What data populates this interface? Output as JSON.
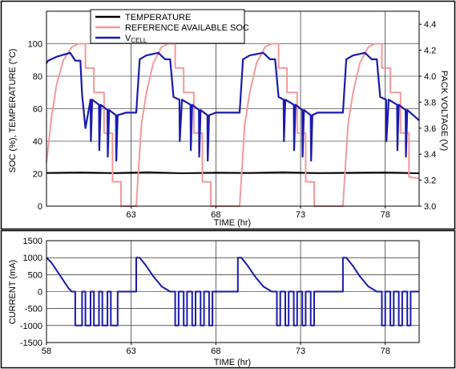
{
  "chart_data": [
    {
      "type": "line",
      "xlabel": "TIME (hr)",
      "ylabel": "SOC (%), TEMPERATURE (°C)",
      "y2label": "PACK VOLTAGE (V)",
      "xlim": [
        58,
        80
      ],
      "ylim": [
        0,
        120
      ],
      "y2lim": [
        3.0,
        4.5
      ],
      "xticks": [
        63,
        68,
        73,
        78
      ],
      "yticks": [
        0,
        20,
        40,
        60,
        80,
        100
      ],
      "y2ticks": [
        3.0,
        3.2,
        3.4,
        3.6,
        3.8,
        4.0,
        4.2,
        4.4
      ],
      "grid": true,
      "legend_position": "top-center",
      "series": [
        {
          "name": "TEMPERATURE",
          "axis": "left",
          "color": "#000000",
          "x": [
            58,
            60,
            62,
            64,
            66,
            68,
            70,
            72,
            74,
            76,
            78,
            80
          ],
          "y": [
            20.5,
            20.8,
            20.4,
            20.9,
            20.3,
            20.7,
            20.5,
            20.9,
            20.4,
            20.6,
            20.8,
            20.3
          ]
        },
        {
          "name": "REFERENCE AVAILABLE SOC",
          "axis": "left",
          "color": "#f29a9a",
          "x": [
            58,
            58.3,
            58.6,
            59,
            59.5,
            59.9,
            60.3,
            60.3,
            60.8,
            60.8,
            61.4,
            61.4,
            61.9,
            61.9,
            62.4,
            62.4,
            63.3,
            63.6,
            63.9,
            64.3,
            64.8,
            65.2,
            65.6,
            65.6,
            66.1,
            66.1,
            66.7,
            66.7,
            67.2,
            67.2,
            67.7,
            67.7,
            69.4,
            69.7,
            70.0,
            70.4,
            70.9,
            71.3,
            71.7,
            71.7,
            72.2,
            72.2,
            72.8,
            72.8,
            73.3,
            73.3,
            73.8,
            73.8,
            75.5,
            75.8,
            76.1,
            76.5,
            77.0,
            77.4,
            77.8,
            77.8,
            78.3,
            78.3,
            78.9,
            78.9,
            79.4,
            79.4,
            80
          ],
          "y": [
            27,
            55,
            75,
            90,
            98,
            100,
            100,
            85,
            85,
            70,
            70,
            45,
            45,
            15,
            15,
            0,
            0,
            50,
            70,
            88,
            98,
            100,
            100,
            85,
            85,
            70,
            70,
            45,
            45,
            15,
            15,
            0,
            0,
            50,
            70,
            88,
            98,
            100,
            100,
            85,
            85,
            70,
            70,
            45,
            45,
            15,
            15,
            0,
            0,
            50,
            70,
            88,
            98,
            100,
            100,
            85,
            85,
            70,
            70,
            45,
            45,
            18,
            17
          ]
        },
        {
          "name": "VCELL",
          "name_main": "V",
          "name_sub": "CELL",
          "axis": "right",
          "color": "#1a1ab0",
          "x": [
            58,
            58.1,
            58.6,
            59.4,
            59.7,
            60.0,
            60.1,
            60.3,
            60.6,
            60.62,
            60.7,
            61.1,
            61.12,
            61.2,
            61.6,
            61.62,
            61.7,
            62.1,
            62.12,
            62.2,
            62.7,
            63.3,
            63.5,
            63.9,
            64.6,
            65.0,
            65.3,
            65.5,
            65.85,
            65.87,
            66.0,
            66.5,
            66.52,
            66.6,
            67.0,
            67.02,
            67.1,
            67.5,
            67.52,
            67.6,
            68.0,
            69.4,
            69.6,
            70.0,
            70.8,
            71.2,
            71.5,
            71.7,
            72.0,
            72.02,
            72.1,
            72.6,
            72.62,
            72.7,
            73.1,
            73.12,
            73.2,
            73.6,
            73.62,
            73.7,
            74.0,
            75.5,
            75.7,
            76.1,
            76.8,
            77.2,
            77.5,
            77.7,
            78.05,
            78.07,
            78.2,
            78.7,
            78.72,
            78.8,
            79.2,
            79.22,
            79.3,
            80
          ],
          "y": [
            4.1,
            4.12,
            4.15,
            4.18,
            4.12,
            4.12,
            3.86,
            3.6,
            3.82,
            3.5,
            3.82,
            3.78,
            3.43,
            3.78,
            3.74,
            3.38,
            3.74,
            3.7,
            3.35,
            3.7,
            3.72,
            3.72,
            4.13,
            4.16,
            4.18,
            4.13,
            4.13,
            3.84,
            3.82,
            3.5,
            3.82,
            3.78,
            3.43,
            3.78,
            3.74,
            3.38,
            3.74,
            3.7,
            3.35,
            3.7,
            3.72,
            3.72,
            4.13,
            4.16,
            4.18,
            4.13,
            4.13,
            3.84,
            3.82,
            3.5,
            3.82,
            3.78,
            3.43,
            3.78,
            3.74,
            3.38,
            3.74,
            3.7,
            3.35,
            3.7,
            3.72,
            3.72,
            4.13,
            4.16,
            4.18,
            4.13,
            4.13,
            3.84,
            3.82,
            3.5,
            3.82,
            3.78,
            3.43,
            3.78,
            3.74,
            3.38,
            3.74,
            3.66
          ]
        }
      ]
    },
    {
      "type": "line",
      "xlabel": "TIME (hr)",
      "ylabel": "CURRENT (mA)",
      "xlim": [
        58,
        80
      ],
      "ylim": [
        -1500,
        1500
      ],
      "xticks": [
        58,
        63,
        68,
        73,
        78
      ],
      "yticks": [
        -1500,
        -1000,
        -500,
        0,
        500,
        1000,
        1500
      ],
      "grid": true,
      "series": [
        {
          "name": "",
          "color": "#1a1ab0",
          "x": [
            58,
            58.3,
            58.7,
            59.1,
            59.3,
            59.5,
            59.5,
            59.7,
            59.7,
            60.1,
            60.1,
            60.3,
            60.3,
            60.6,
            60.6,
            60.8,
            60.8,
            61.1,
            61.1,
            61.3,
            61.3,
            61.6,
            61.6,
            61.8,
            61.8,
            62.2,
            62.2,
            62.4,
            62.4,
            63.3,
            63.3,
            63.5,
            63.9,
            64.3,
            64.8,
            65.3,
            65.3,
            65.6,
            65.6,
            65.8,
            65.8,
            66.1,
            66.1,
            66.3,
            66.3,
            66.6,
            66.6,
            66.8,
            66.8,
            67.1,
            67.1,
            67.3,
            67.3,
            67.6,
            67.6,
            67.8,
            67.8,
            69.3,
            69.3,
            69.5,
            69.9,
            70.3,
            70.8,
            71.3,
            71.3,
            71.6,
            71.6,
            71.8,
            71.8,
            72.1,
            72.1,
            72.3,
            72.3,
            72.6,
            72.6,
            72.8,
            72.8,
            73.1,
            73.1,
            73.3,
            73.3,
            73.6,
            73.6,
            73.8,
            73.8,
            75.5,
            75.5,
            75.7,
            76.1,
            76.5,
            77.0,
            77.5,
            77.5,
            77.8,
            77.8,
            78.0,
            78.0,
            78.3,
            78.3,
            78.5,
            78.5,
            78.8,
            78.8,
            79.0,
            79.0,
            79.3,
            79.3,
            79.5,
            79.5,
            80
          ],
          "y": [
            1000,
            850,
            550,
            250,
            100,
            0,
            0,
            0,
            -1000,
            -1000,
            0,
            0,
            -1000,
            -1000,
            0,
            0,
            -1000,
            -1000,
            0,
            0,
            -1000,
            -1000,
            0,
            0,
            -1000,
            -1000,
            0,
            0,
            0,
            0,
            1000,
            1000,
            750,
            450,
            150,
            0,
            0,
            0,
            -1000,
            -1000,
            0,
            0,
            -1000,
            -1000,
            0,
            0,
            -1000,
            -1000,
            0,
            0,
            -1000,
            -1000,
            0,
            0,
            -1000,
            -1000,
            0,
            0,
            1000,
            1000,
            750,
            450,
            150,
            0,
            0,
            0,
            -1000,
            -1000,
            0,
            0,
            -1000,
            -1000,
            0,
            0,
            -1000,
            -1000,
            0,
            0,
            -1000,
            -1000,
            0,
            0,
            -1000,
            -1000,
            0,
            0,
            1000,
            1000,
            750,
            450,
            150,
            0,
            0,
            0,
            -1000,
            -1000,
            0,
            0,
            -1000,
            -1000,
            0,
            0,
            -1000,
            -1000,
            0,
            0,
            -1000,
            -1000,
            0,
            0
          ]
        }
      ]
    }
  ]
}
